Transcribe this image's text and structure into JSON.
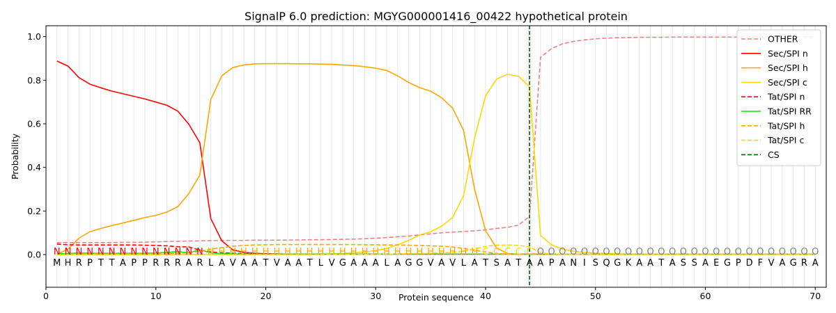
{
  "chart_data": {
    "type": "line",
    "title": "SignalP 6.0 prediction: MGYG000001416_00422 hypothetical protein",
    "xlabel": "Protein sequence",
    "ylabel": "Probability",
    "xlim": [
      0,
      71
    ],
    "ylim": [
      -0.15,
      1.05
    ],
    "xticks": [
      0,
      10,
      20,
      30,
      40,
      50,
      60,
      70
    ],
    "yticks": [
      0.0,
      0.2,
      0.4,
      0.6,
      0.8,
      1.0
    ],
    "vertical_grid": true,
    "legend_position": "top-right",
    "sequence": "MHRPTTAPPRRRARLAVAATVAATLVGAAALAGGVAVLATSATAAPANISQGKAATASSAEGPDFVAGRA",
    "regions": "NNNNNNNNNNNNNNHHHHHHHHHHHHHHHHHHHHHHHHHCCCCCOOOOOOOOOOOOOOOOOOOOOOOOOO",
    "region_colors": {
      "N": "#ff0000",
      "H": "#ffa500",
      "C": "#ffd700",
      "O": "#808080"
    },
    "cs_position": 44,
    "series": [
      {
        "name": "OTHER",
        "color": "#f08080",
        "dash": true,
        "values": [
          0.055,
          0.055,
          0.055,
          0.055,
          0.055,
          0.055,
          0.056,
          0.056,
          0.057,
          0.058,
          0.06,
          0.061,
          0.062,
          0.063,
          0.064,
          0.065,
          0.065,
          0.065,
          0.066,
          0.066,
          0.066,
          0.067,
          0.067,
          0.068,
          0.068,
          0.069,
          0.07,
          0.071,
          0.073,
          0.075,
          0.078,
          0.082,
          0.085,
          0.09,
          0.095,
          0.1,
          0.103,
          0.106,
          0.109,
          0.113,
          0.12,
          0.125,
          0.135,
          0.175,
          0.905,
          0.945,
          0.967,
          0.978,
          0.985,
          0.99,
          0.993,
          0.995,
          0.996,
          0.997,
          0.997,
          0.997,
          0.998,
          0.998,
          0.998,
          0.998,
          0.998,
          0.998,
          0.998,
          0.998,
          0.998,
          0.998,
          0.998,
          0.998,
          0.998,
          0.998
        ]
      },
      {
        "name": "Sec/SPI n",
        "color": "#ff0000",
        "dash": false,
        "values": [
          0.888,
          0.865,
          0.812,
          0.782,
          0.765,
          0.75,
          0.738,
          0.726,
          0.714,
          0.7,
          0.685,
          0.658,
          0.598,
          0.513,
          0.165,
          0.063,
          0.022,
          0.01,
          0.006,
          0.004,
          0.003,
          0.002,
          0.002,
          0.002,
          0.002,
          0.002,
          0.002,
          0.002,
          0.002,
          0.002,
          0.002,
          0.002,
          0.002,
          0.002,
          0.002,
          0.002,
          0.002,
          0.002,
          0.002,
          0.002,
          0.002,
          0.002,
          0.002,
          0.002,
          0.001,
          0.001,
          0.001,
          0.001,
          0.001,
          0.001,
          0.001,
          0.001,
          0.001,
          0.001,
          0.001,
          0.001,
          0.001,
          0.001,
          0.001,
          0.001,
          0.001,
          0.001,
          0.001,
          0.001,
          0.001,
          0.001,
          0.001,
          0.001,
          0.001,
          0.001
        ]
      },
      {
        "name": "Sec/SPI h",
        "color": "#ffa500",
        "dash": false,
        "values": [
          0.002,
          0.025,
          0.075,
          0.105,
          0.12,
          0.133,
          0.145,
          0.157,
          0.17,
          0.18,
          0.195,
          0.22,
          0.28,
          0.365,
          0.712,
          0.82,
          0.858,
          0.87,
          0.875,
          0.876,
          0.876,
          0.876,
          0.875,
          0.875,
          0.874,
          0.873,
          0.87,
          0.867,
          0.862,
          0.855,
          0.845,
          0.82,
          0.79,
          0.766,
          0.75,
          0.72,
          0.672,
          0.57,
          0.3,
          0.11,
          0.03,
          0.005,
          0.002,
          0.001,
          0.001,
          0.001,
          0.001,
          0.001,
          0.001,
          0.001,
          0.001,
          0.001,
          0.001,
          0.001,
          0.001,
          0.001,
          0.001,
          0.001,
          0.001,
          0.001,
          0.001,
          0.001,
          0.001,
          0.001,
          0.001,
          0.001,
          0.001,
          0.001,
          0.001,
          0.001
        ]
      },
      {
        "name": "Sec/SPI c",
        "color": "#ffd700",
        "dash": false,
        "values": [
          0.0,
          0.0,
          0.0,
          0.0,
          0.0,
          0.0,
          0.0,
          0.0,
          0.0,
          0.0,
          0.001,
          0.001,
          0.001,
          0.001,
          0.001,
          0.001,
          0.001,
          0.001,
          0.001,
          0.001,
          0.001,
          0.001,
          0.001,
          0.001,
          0.002,
          0.003,
          0.005,
          0.008,
          0.012,
          0.018,
          0.028,
          0.045,
          0.065,
          0.09,
          0.105,
          0.13,
          0.17,
          0.27,
          0.535,
          0.728,
          0.805,
          0.827,
          0.818,
          0.77,
          0.088,
          0.045,
          0.025,
          0.015,
          0.01,
          0.007,
          0.005,
          0.003,
          0.002,
          0.002,
          0.001,
          0.001,
          0.001,
          0.001,
          0.001,
          0.001,
          0.001,
          0.001,
          0.001,
          0.001,
          0.001,
          0.001,
          0.001,
          0.001,
          0.001,
          0.001
        ]
      },
      {
        "name": "Tat/SPI n",
        "color": "#ff0000",
        "dash": true,
        "values": [
          0.048,
          0.045,
          0.044,
          0.044,
          0.044,
          0.044,
          0.044,
          0.044,
          0.043,
          0.042,
          0.04,
          0.036,
          0.035,
          0.02,
          0.012,
          0.008,
          0.006,
          0.005,
          0.004,
          0.003,
          0.002,
          0.002,
          0.002,
          0.002,
          0.002,
          0.002,
          0.002,
          0.002,
          0.002,
          0.002,
          0.002,
          0.002,
          0.002,
          0.002,
          0.002,
          0.002,
          0.002,
          0.002,
          0.002,
          0.002,
          0.002,
          0.002,
          0.002,
          0.002,
          0.001,
          0.001,
          0.001,
          0.001,
          0.001,
          0.001,
          0.001,
          0.001,
          0.001,
          0.001,
          0.001,
          0.001,
          0.001,
          0.001,
          0.001,
          0.001,
          0.001,
          0.001,
          0.001,
          0.001,
          0.001,
          0.001,
          0.001,
          0.001,
          0.001,
          0.001
        ]
      },
      {
        "name": "Tat/SPI RR",
        "color": "#00ee00",
        "dash": false,
        "values": [
          0.003,
          0.005,
          0.007,
          0.006,
          0.006,
          0.006,
          0.006,
          0.006,
          0.006,
          0.007,
          0.01,
          0.014,
          0.008,
          0.022,
          0.008,
          0.004,
          0.003,
          0.002,
          0.002,
          0.002,
          0.002,
          0.002,
          0.002,
          0.002,
          0.002,
          0.002,
          0.002,
          0.002,
          0.002,
          0.002,
          0.002,
          0.002,
          0.002,
          0.002,
          0.002,
          0.002,
          0.002,
          0.002,
          0.002,
          0.002,
          0.002,
          0.002,
          0.002,
          0.001,
          0.001,
          0.001,
          0.001,
          0.001,
          0.001,
          0.001,
          0.001,
          0.001,
          0.001,
          0.001,
          0.001,
          0.001,
          0.001,
          0.001,
          0.001,
          0.001,
          0.001,
          0.001,
          0.001,
          0.001,
          0.001,
          0.001,
          0.001,
          0.001,
          0.001,
          0.001
        ]
      },
      {
        "name": "Tat/SPI h",
        "color": "#ffa500",
        "dash": true,
        "values": [
          0.0,
          0.002,
          0.003,
          0.003,
          0.003,
          0.003,
          0.003,
          0.003,
          0.003,
          0.004,
          0.005,
          0.006,
          0.008,
          0.015,
          0.025,
          0.032,
          0.038,
          0.042,
          0.044,
          0.045,
          0.046,
          0.046,
          0.046,
          0.046,
          0.046,
          0.046,
          0.046,
          0.046,
          0.045,
          0.045,
          0.044,
          0.044,
          0.043,
          0.042,
          0.04,
          0.038,
          0.035,
          0.028,
          0.02,
          0.012,
          0.005,
          0.002,
          0.001,
          0.001,
          0.001,
          0.001,
          0.001,
          0.001,
          0.001,
          0.001,
          0.001,
          0.001,
          0.001,
          0.001,
          0.001,
          0.001,
          0.001,
          0.001,
          0.001,
          0.001,
          0.001,
          0.001,
          0.001,
          0.001,
          0.001,
          0.001,
          0.001,
          0.001,
          0.001,
          0.001
        ]
      },
      {
        "name": "Tat/SPI c",
        "color": "#ffd700",
        "dash": true,
        "values": [
          0.0,
          0.0,
          0.0,
          0.0,
          0.0,
          0.0,
          0.0,
          0.0,
          0.0,
          0.0,
          0.0,
          0.0,
          0.0,
          0.0,
          0.0,
          0.0,
          0.0,
          0.0,
          0.0,
          0.0,
          0.0,
          0.0,
          0.0,
          0.0,
          0.0,
          0.001,
          0.001,
          0.001,
          0.001,
          0.001,
          0.002,
          0.003,
          0.004,
          0.005,
          0.006,
          0.008,
          0.01,
          0.015,
          0.025,
          0.038,
          0.043,
          0.044,
          0.042,
          0.035,
          0.008,
          0.003,
          0.002,
          0.001,
          0.001,
          0.001,
          0.0,
          0.0,
          0.0,
          0.0,
          0.0,
          0.0,
          0.0,
          0.0,
          0.0,
          0.0,
          0.0,
          0.0,
          0.0,
          0.0,
          0.0,
          0.0,
          0.0,
          0.0,
          0.0,
          0.0
        ]
      }
    ],
    "cs_legend": {
      "name": "CS",
      "color": "#006400"
    }
  }
}
